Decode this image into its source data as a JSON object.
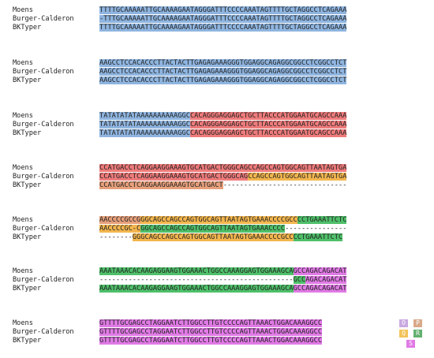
{
  "colors": {
    "blue": "#8fb5e0",
    "red": "#ef7b7b",
    "orange": "#f3b64f",
    "salmon": "#e7a07b",
    "green": "#4fc06a",
    "pink": "#e07ae5"
  },
  "blocks": [
    {
      "rows": [
        {
          "label": "Moens",
          "segments": [
            {
              "text": "TTTTGCAAAAATTGCAAAAGAATAGGGATTTCCCCAAATAGTTTTGCTAGGCCTCAGAAA",
              "color": "blue"
            }
          ]
        },
        {
          "label": "Burger-Calderon",
          "segments": [
            {
              "text": "-TTTGCAAAAATTGCAAAAGAATAGGGATTTCCCCAAATAGTTTTGCTAGGCCTCAGAAA",
              "color": "blue"
            }
          ]
        },
        {
          "label": "BKTyper",
          "segments": [
            {
              "text": "TTTTGCAAAAATTGCAAAAGAATAGGGATTTCCCCAAATAGTTTTGCTAGGCCTCAGAAA",
              "color": "blue"
            }
          ]
        }
      ]
    },
    {
      "rows": [
        {
          "label": "Moens",
          "segments": [
            {
              "text": "AAGCCTCCACACCCTTACTACTTGAGAGAAAGGGTGGAGGCAGAGGCGGCCTCGGCCTCT",
              "color": "blue"
            }
          ]
        },
        {
          "label": "Burger-Calderon",
          "segments": [
            {
              "text": "AAGCCTCCACACCCTTACTACTTGAGAGAAAGGGTGGAGGCAGAGGCGGCCTCGGCCTCT",
              "color": "blue"
            }
          ]
        },
        {
          "label": "BKTyper",
          "segments": [
            {
              "text": "AAGCCTCCACACCCTTACTACTTGAGAGAAAGGGTGGAGGCAGAGGCGGCCTCGGCCTCT",
              "color": "blue"
            }
          ]
        }
      ]
    },
    {
      "rows": [
        {
          "label": "Moens",
          "segments": [
            {
              "text": "TATATATATAAAAAAAAAAGGC",
              "color": "blue"
            },
            {
              "text": "CACAGGGAGGAGCTGCTTACCCATGGAATGCAGCCAAA",
              "color": "red"
            }
          ]
        },
        {
          "label": "Burger-Calderon",
          "segments": [
            {
              "text": "TATATATATAAAAAAAAAAGGC",
              "color": "blue"
            },
            {
              "text": "CACAGGGAGGAGCTGCTTACCCATGGAATGCAGCCAAA",
              "color": "red"
            }
          ]
        },
        {
          "label": "BKTyper",
          "segments": [
            {
              "text": "TATATATATAAAAAAAAAAGGC",
              "color": "blue"
            },
            {
              "text": "CACAGGGAGGAGCTGCTTACCCATGGAATGCAGCCAAA",
              "color": "red"
            }
          ]
        }
      ]
    },
    {
      "rows": [
        {
          "label": "Moens",
          "segments": [
            {
              "text": "CCATGACCTCAGGAAGGAAAGTGCATGACTGGGCAGCCAGCCAGTGGCAGTTAATAGTGA",
              "color": "red"
            }
          ]
        },
        {
          "label": "Burger-Calderon",
          "segments": [
            {
              "text": "CCATGACCTCAGGAAGGAAAGTGCATGACTGGGCAG",
              "color": "red"
            },
            {
              "text": "CCAGCCAGTGGCAGTTAATAGTGA",
              "color": "orange"
            }
          ]
        },
        {
          "label": "BKTyper",
          "segments": [
            {
              "text": "CCATGACCTCAGGAAGGAAAGTGCATGACT",
              "color": "salmon"
            },
            {
              "text": "------------------------------",
              "color": "plain"
            }
          ]
        }
      ]
    },
    {
      "rows": [
        {
          "label": "Moens",
          "segments": [
            {
              "text": "AACCCCGCCG",
              "color": "salmon"
            },
            {
              "text": "GGCAGCCAGCCAGTGGCAGTTAATAGTGAAACCCCGCC",
              "color": "orange"
            },
            {
              "text": "CCTGAAATTCTC",
              "color": "green"
            }
          ]
        },
        {
          "label": "Burger-Calderon",
          "segments": [
            {
              "text": "AACCCCGC-C",
              "color": "orange"
            },
            {
              "text": "GGCAGCCAGCCAGTGGCAGTTAATAGTGAAACCCC",
              "color": "green"
            },
            {
              "text": "---------------",
              "color": "plain"
            }
          ]
        },
        {
          "label": "BKTyper",
          "segments": [
            {
              "text": "--------",
              "color": "plain"
            },
            {
              "text": "GGGCAGCCAGCCAGTGGCAGTTAATAGTGAAACCCCGCC",
              "color": "orange"
            },
            {
              "text": "CCTGAAATTCTC",
              "color": "green"
            }
          ]
        }
      ]
    },
    {
      "rows": [
        {
          "label": "Moens",
          "segments": [
            {
              "text": "AAATAAACACAAGAGGAAGTGGAAACTGGCCAAAGGAGTGGAAAGCA",
              "color": "green"
            },
            {
              "text": "GCCAGACAGACAT",
              "color": "pink"
            }
          ]
        },
        {
          "label": "Burger-Calderon",
          "segments": [
            {
              "text": "-----------------------------------------------",
              "color": "plain"
            },
            {
              "text": "GCC",
              "color": "green"
            },
            {
              "text": "AGACAGACAT",
              "color": "pink"
            }
          ]
        },
        {
          "label": "BKTyper",
          "segments": [
            {
              "text": "AAATAAACACAAGAGGAAGTGGAAACTGGCCAAAGGAGTGGAAAGCA",
              "color": "green"
            },
            {
              "text": "GCCAGACAGACAT",
              "color": "pink"
            }
          ]
        }
      ]
    },
    {
      "rows": [
        {
          "label": "Moens",
          "segments": [
            {
              "text": "GTTTTGCGAGCCTAGGAATCTTGGCCTTGTCCCCAGTTAAACTGGACAAAGGCC",
              "color": "pink"
            }
          ]
        },
        {
          "label": "Burger-Calderon",
          "segments": [
            {
              "text": "GTTTTGCGAGCCTAGGAATCTTGGCCTTGTCCCCAGTTAAACTGGACAAAGGCC",
              "color": "pink"
            }
          ]
        },
        {
          "label": "BKTyper",
          "segments": [
            {
              "text": "GTTTTGCGAGCCTAGGAATCTTGGCCTTGTCCCCAGTTAAACTGGACAAAGGCC",
              "color": "pink"
            }
          ]
        }
      ]
    }
  ],
  "legend_boxes": [
    {
      "letter": "O",
      "color": "#c9a8e0"
    },
    {
      "letter": "P",
      "color": "#d9a98a"
    },
    {
      "letter": "Q",
      "color": "#f3c35a"
    },
    {
      "letter": "R",
      "color": "#63b06f"
    },
    {
      "letter": "S",
      "color": "#e07ae5"
    }
  ]
}
